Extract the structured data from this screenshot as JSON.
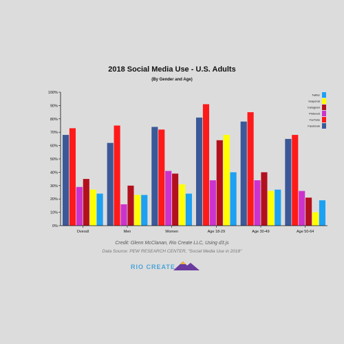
{
  "chart_data": {
    "type": "bar",
    "title": "2018 Social Media Use - U.S. Adults",
    "subtitle": "(By Gender and Age)",
    "categories": [
      "Overall",
      "Men",
      "Women",
      "Age 18-29",
      "Age 30-49",
      "Age 50-64"
    ],
    "series": [
      {
        "name": "Facebook",
        "color": "#3b5998",
        "values": [
          68,
          62,
          74,
          81,
          78,
          65
        ]
      },
      {
        "name": "YouTube",
        "color": "#ff1a1a",
        "values": [
          73,
          75,
          72,
          91,
          85,
          68
        ]
      },
      {
        "name": "Pinterest",
        "color": "#cc33cc",
        "values": [
          29,
          16,
          41,
          34,
          34,
          26
        ]
      },
      {
        "name": "Instagram",
        "color": "#b3101e",
        "values": [
          35,
          30,
          39,
          64,
          40,
          21
        ]
      },
      {
        "name": "Snapchat",
        "color": "#ffff00",
        "values": [
          27,
          23,
          31,
          68,
          26,
          10
        ]
      },
      {
        "name": "Twitter",
        "color": "#1da1f2",
        "values": [
          24,
          23,
          24,
          40,
          27,
          19
        ]
      }
    ],
    "legend_order": [
      "Twitter",
      "Snapchat",
      "Instagram",
      "Pinterest",
      "YouTube",
      "Facebook"
    ],
    "legend_position": "top-right",
    "ylim": [
      0,
      100
    ],
    "yticks": [
      "0%",
      "10%",
      "20%",
      "30%",
      "40%",
      "50%",
      "60%",
      "70%",
      "80%",
      "90%",
      "100%"
    ],
    "grid": false
  },
  "credit": "Credit: Glenn McClanan, Rio Create LLC, Using d3.js",
  "source": "Data Source: PEW RESEARCH CENTER, \"Social Media Use in 2018\"",
  "logo": {
    "text": "RIO CREATE"
  }
}
